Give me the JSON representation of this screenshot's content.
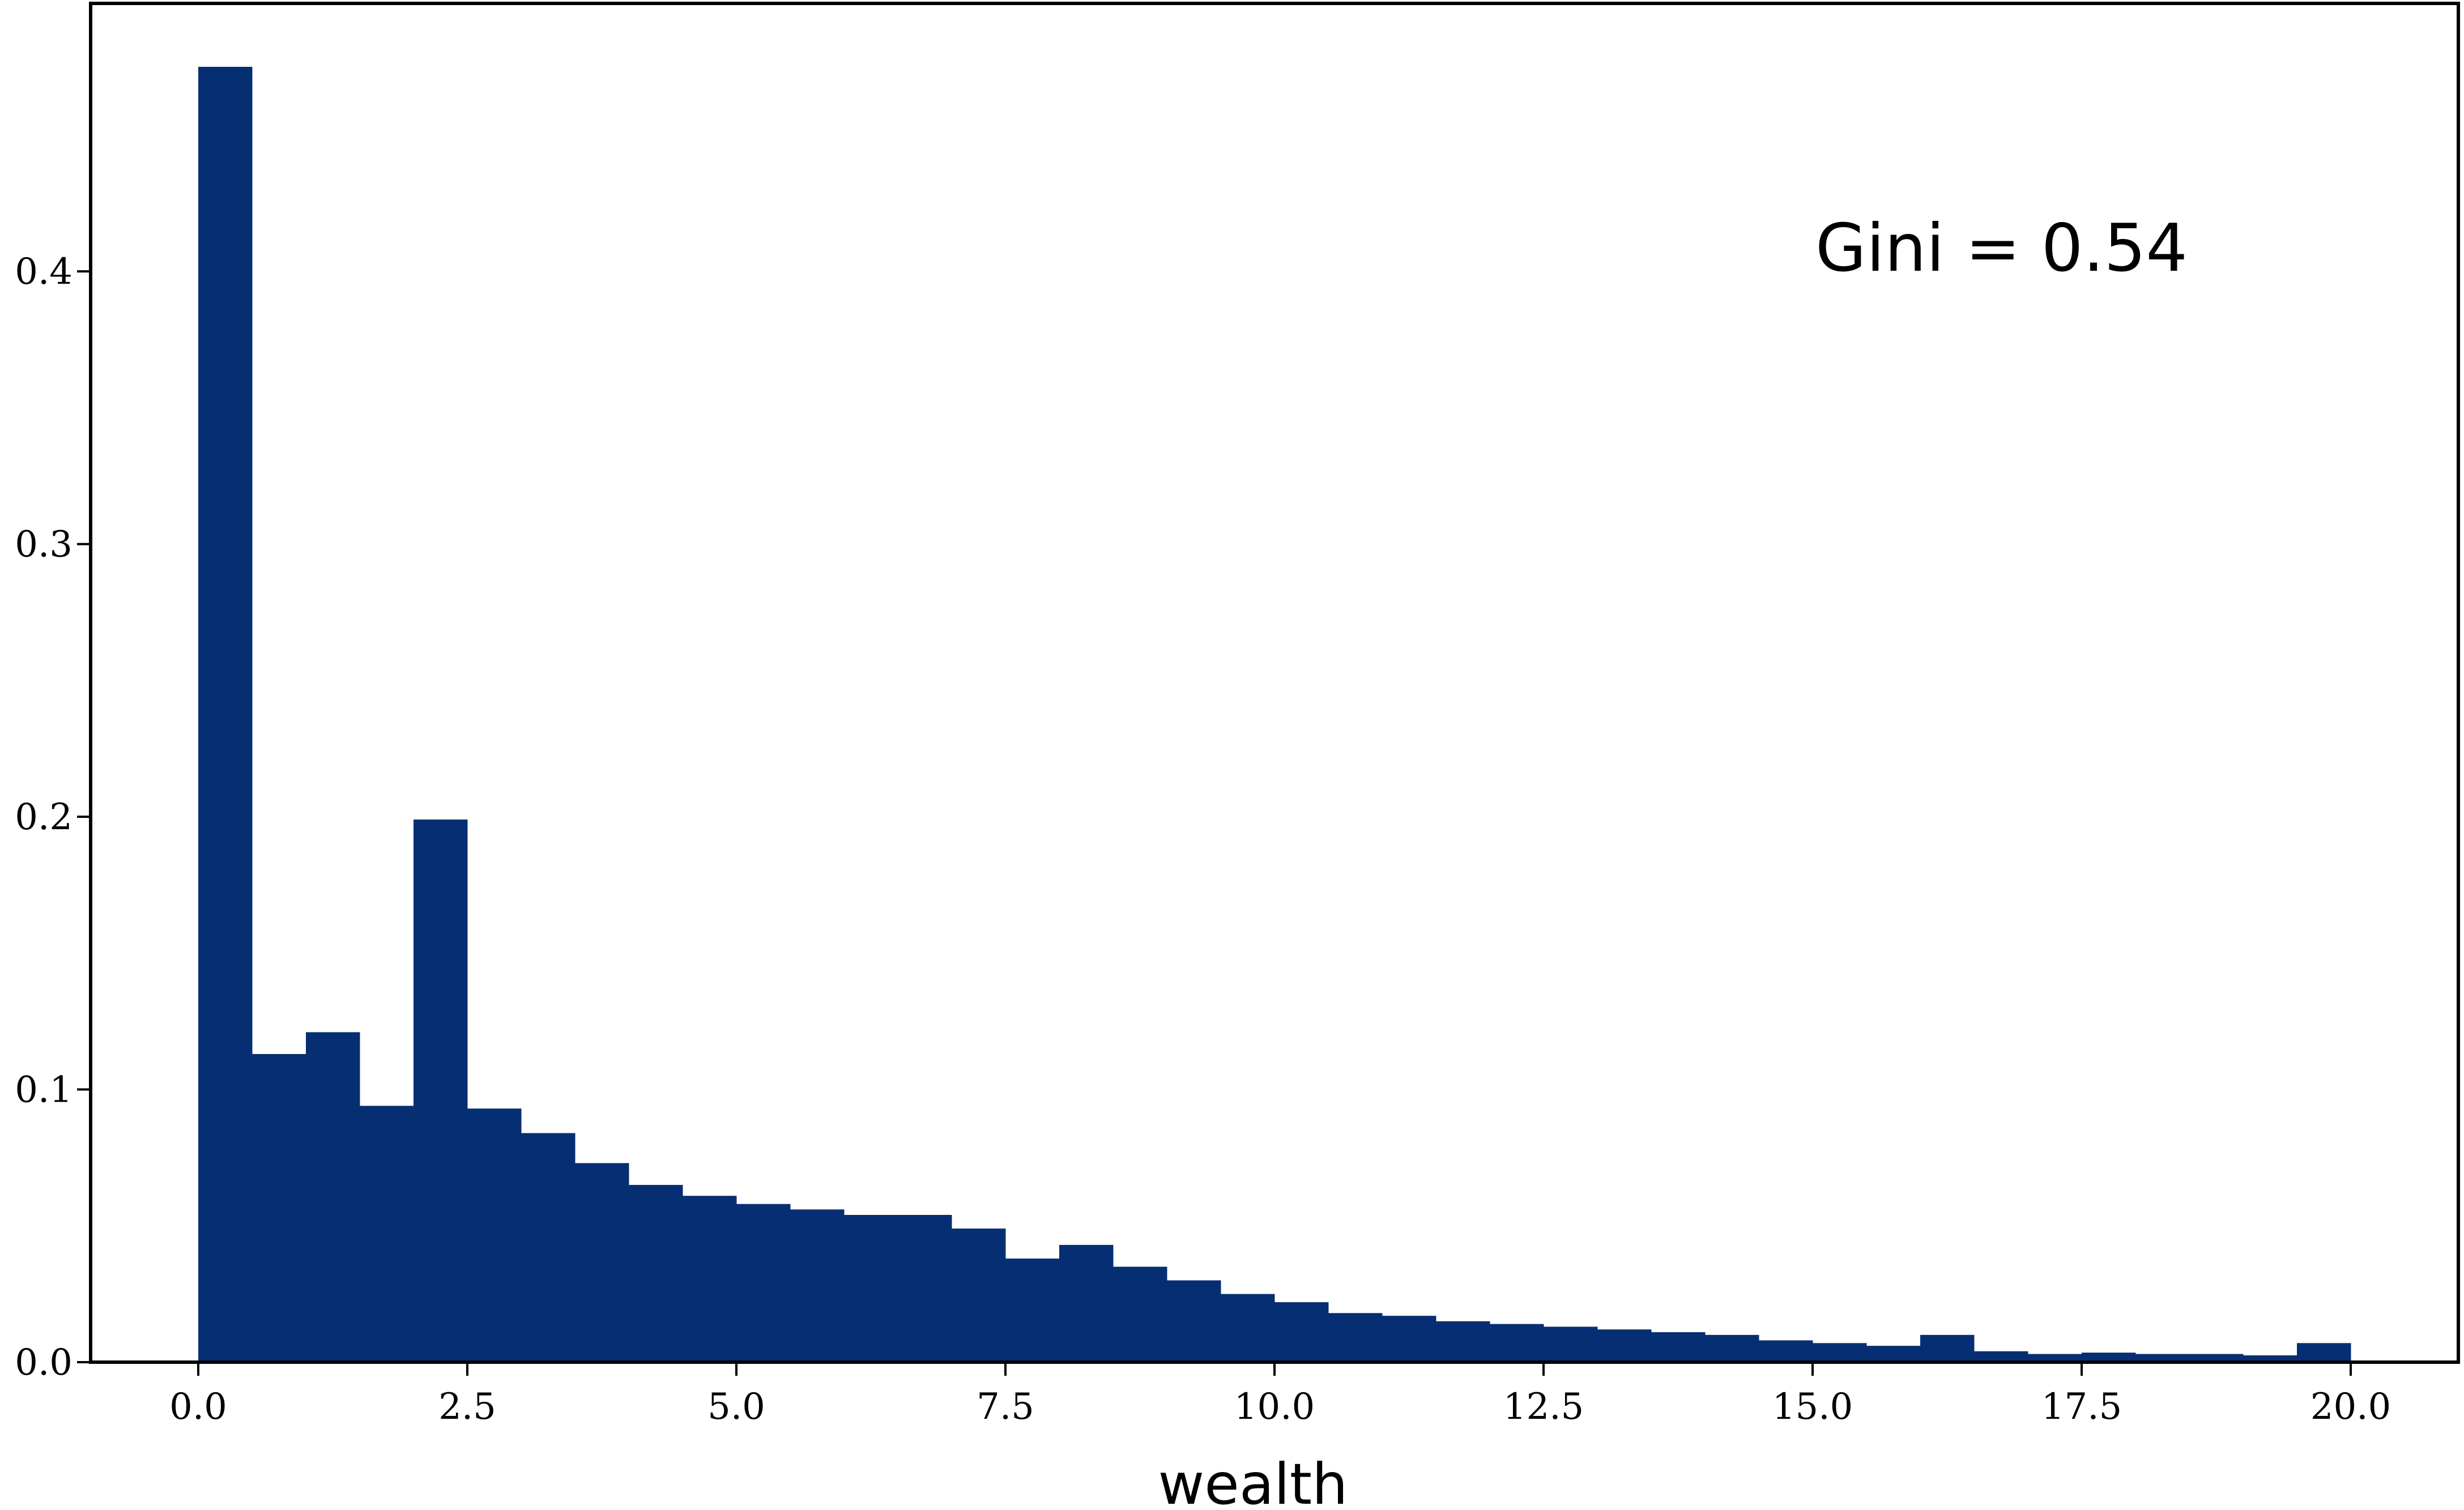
{
  "chart_data": {
    "type": "bar",
    "title": "",
    "xlabel": "wealth",
    "ylabel": "",
    "bin_width": 0.5,
    "bin_edges_start": 0.0,
    "values": [
      0.475,
      0.113,
      0.121,
      0.094,
      0.199,
      0.093,
      0.084,
      0.073,
      0.065,
      0.061,
      0.058,
      0.056,
      0.054,
      0.054,
      0.049,
      0.038,
      0.043,
      0.035,
      0.03,
      0.025,
      0.022,
      0.018,
      0.017,
      0.015,
      0.014,
      0.013,
      0.012,
      0.011,
      0.01,
      0.008,
      0.007,
      0.006,
      0.01,
      0.004,
      0.003,
      0.0035,
      0.003,
      0.003,
      0.0025,
      0.007
    ],
    "xlim": [
      -1.0,
      21.0
    ],
    "ylim": [
      0.0,
      0.475
    ],
    "xticks": [
      0.0,
      2.5,
      5.0,
      7.5,
      10.0,
      12.5,
      15.0,
      17.5,
      20.0
    ],
    "xtick_labels": [
      "0.0",
      "2.5",
      "5.0",
      "7.5",
      "10.0",
      "12.5",
      "15.0",
      "17.5",
      "20.0"
    ],
    "yticks": [
      0.0,
      0.1,
      0.2,
      0.3,
      0.4
    ],
    "ytick_labels": [
      "0.0",
      "0.1",
      "0.2",
      "0.3",
      "0.4"
    ],
    "grid": false,
    "legend": "none",
    "bar_color": "#052f72",
    "annotation": {
      "text": "Gini = 0.54",
      "x": 16.5,
      "y": 0.4
    }
  }
}
